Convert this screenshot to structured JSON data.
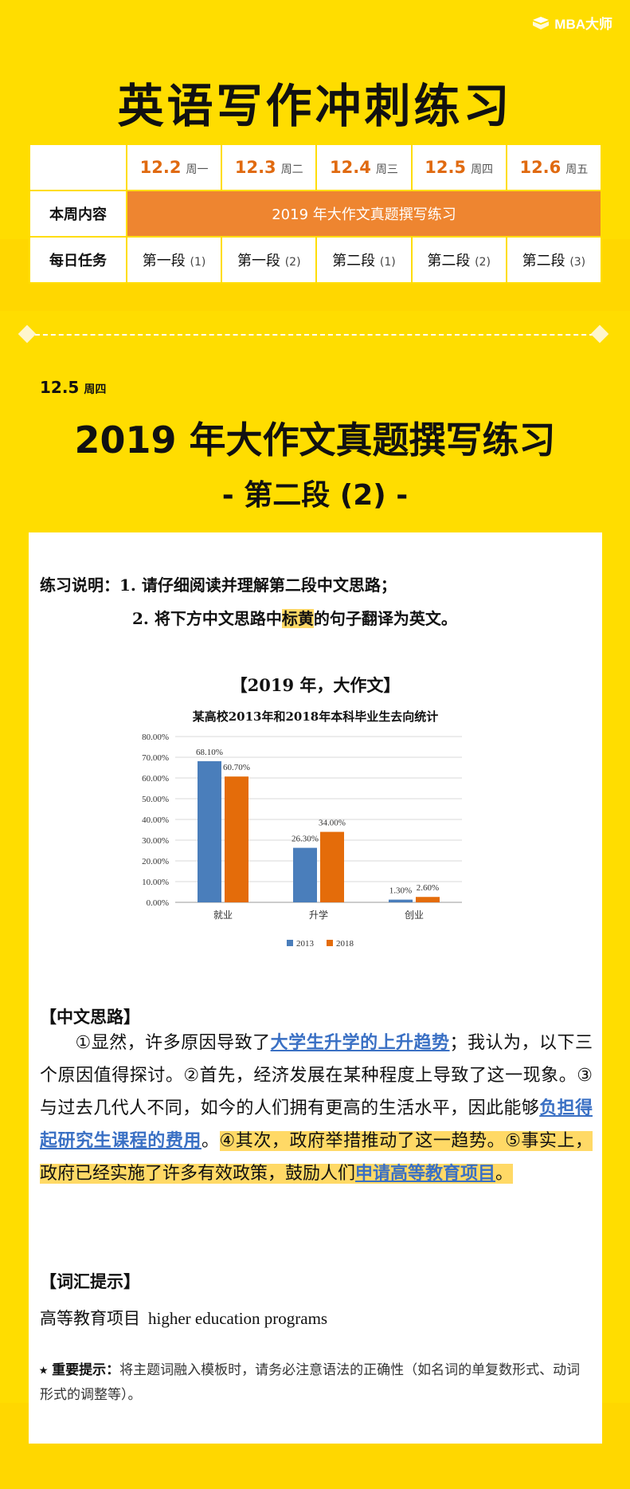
{
  "logo": {
    "text": "MBA大师"
  },
  "title": "英语写作冲刺练习",
  "schedule": {
    "dates": [
      {
        "date": "12.2",
        "weekday": "周一"
      },
      {
        "date": "12.3",
        "weekday": "周二"
      },
      {
        "date": "12.4",
        "weekday": "周三"
      },
      {
        "date": "12.5",
        "weekday": "周四"
      },
      {
        "date": "12.6",
        "weekday": "周五"
      }
    ],
    "row1_label": "本周内容",
    "row1_content": "2019 年大作文真题撰写练习",
    "row2_label": "每日任务",
    "tasks": [
      {
        "name": "第一段",
        "num": "(1)"
      },
      {
        "name": "第一段",
        "num": "(2)"
      },
      {
        "name": "第二段",
        "num": "(1)"
      },
      {
        "name": "第二段",
        "num": "(2)"
      },
      {
        "name": "第二段",
        "num": "(3)"
      }
    ]
  },
  "section": {
    "date": "12.5",
    "weekday": "周四",
    "title": "2019 年大作文真题撰写练习",
    "subtitle": "- 第二段 (2) -"
  },
  "instructions": {
    "label": "练习说明：",
    "item1": "1.  请仔细阅读并理解第二段中文思路；",
    "item2_pre": "2.  将下方中文思路中",
    "item2_hl": "标黄",
    "item2_post": "的句子翻译为英文。"
  },
  "chart_heading": "【2019 年，大作文】",
  "chart_data": {
    "type": "bar",
    "title": "某高校2013年和2018年本科毕业生去向统计",
    "categories": [
      "就业",
      "升学",
      "创业"
    ],
    "series": [
      {
        "name": "2013",
        "values": [
          68.1,
          26.3,
          1.3
        ],
        "labels": [
          "68.10%",
          "26.30%",
          "1.30%"
        ],
        "color": "#4A7EBB"
      },
      {
        "name": "2018",
        "values": [
          60.7,
          34.0,
          2.6
        ],
        "labels": [
          "60.70%",
          "34.00%",
          "2.60%"
        ],
        "color": "#E46C0A"
      }
    ],
    "ylim": [
      0,
      80
    ],
    "yticks": [
      "0.00%",
      "10.00%",
      "20.00%",
      "30.00%",
      "40.00%",
      "50.00%",
      "60.00%",
      "70.00%",
      "80.00%"
    ],
    "grid": true,
    "legend": "bottom"
  },
  "thinking": {
    "heading": "【中文思路】",
    "s1a": "①显然，许多原因导致了",
    "s1u": "大学生升学的上升趋势",
    "s1b": "；我认为，以下三个原因值得探讨。②首先，经济发展在某种程度上导致了这一现象。③与过去几代人不同，如今的人们拥有更高的生活水平，因此能够",
    "s3u": "负担得起研究生课程的费用",
    "s3b": "。",
    "hl1": "④其次，政府举措推动了这一趋势。⑤事实上，政府已经实施了许多有效政策，鼓励人们",
    "hl_u": "申请高等教育项目",
    "hl2": "。"
  },
  "vocab": {
    "heading": "【词汇提示】",
    "zh": "高等教育项目",
    "en": "higher education programs"
  },
  "tip": {
    "label": "⭑ 重要提示：",
    "text": "将主题词融入模板时，请务必注意语法的正确性（如名词的单复数形式、动词形式的调整等）。"
  },
  "colors": {
    "background": "#FFDD00",
    "accent": "#EE8530",
    "date": "#E06A10",
    "link": "#3A70C4",
    "highlight": "#FFD966"
  }
}
